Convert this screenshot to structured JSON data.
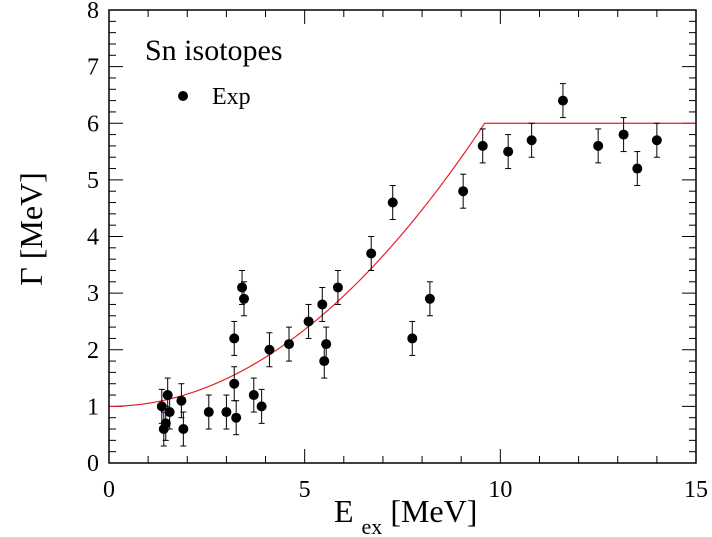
{
  "chart_data": {
    "type": "scatter",
    "title": "Sn isotopes",
    "xlabel_main": "E",
    "xlabel_sub": "ex",
    "xlabel_unit": " [MeV]",
    "ylabel": "Γ [MeV]",
    "xlim": [
      0,
      15
    ],
    "ylim": [
      0,
      8
    ],
    "x_ticks": [
      0,
      5,
      10,
      15
    ],
    "y_ticks": [
      0,
      1,
      2,
      3,
      4,
      5,
      6,
      7,
      8
    ],
    "grid": false,
    "legend_position": "top-left",
    "colors": {
      "points": "#000000",
      "fit_line": "#e8202a",
      "axes": "#000000"
    },
    "series": [
      {
        "name": "Exp",
        "marker": "filled-circle",
        "points": [
          {
            "x": 1.35,
            "y": 1.0,
            "err": 0.3
          },
          {
            "x": 1.4,
            "y": 0.6,
            "err": 0.3
          },
          {
            "x": 1.45,
            "y": 0.7,
            "err": 0.3
          },
          {
            "x": 1.5,
            "y": 1.2,
            "err": 0.3
          },
          {
            "x": 1.55,
            "y": 0.9,
            "err": 0.3
          },
          {
            "x": 1.85,
            "y": 1.1,
            "err": 0.3
          },
          {
            "x": 1.9,
            "y": 0.6,
            "err": 0.3
          },
          {
            "x": 2.55,
            "y": 0.9,
            "err": 0.3
          },
          {
            "x": 3.0,
            "y": 0.9,
            "err": 0.3
          },
          {
            "x": 3.2,
            "y": 1.4,
            "err": 0.3
          },
          {
            "x": 3.2,
            "y": 2.2,
            "err": 0.3
          },
          {
            "x": 3.25,
            "y": 0.8,
            "err": 0.3
          },
          {
            "x": 3.4,
            "y": 3.1,
            "err": 0.3
          },
          {
            "x": 3.45,
            "y": 2.9,
            "err": 0.3
          },
          {
            "x": 3.7,
            "y": 1.2,
            "err": 0.3
          },
          {
            "x": 3.9,
            "y": 1.0,
            "err": 0.3
          },
          {
            "x": 4.1,
            "y": 2.0,
            "err": 0.3
          },
          {
            "x": 4.6,
            "y": 2.1,
            "err": 0.3
          },
          {
            "x": 5.1,
            "y": 2.5,
            "err": 0.3
          },
          {
            "x": 5.45,
            "y": 2.8,
            "err": 0.3
          },
          {
            "x": 5.5,
            "y": 1.8,
            "err": 0.3
          },
          {
            "x": 5.55,
            "y": 2.1,
            "err": 0.3
          },
          {
            "x": 5.85,
            "y": 3.1,
            "err": 0.3
          },
          {
            "x": 6.7,
            "y": 3.7,
            "err": 0.3
          },
          {
            "x": 7.25,
            "y": 4.6,
            "err": 0.3
          },
          {
            "x": 7.75,
            "y": 2.2,
            "err": 0.3
          },
          {
            "x": 8.2,
            "y": 2.9,
            "err": 0.3
          },
          {
            "x": 9.05,
            "y": 4.8,
            "err": 0.3
          },
          {
            "x": 9.55,
            "y": 5.6,
            "err": 0.3
          },
          {
            "x": 10.2,
            "y": 5.5,
            "err": 0.3
          },
          {
            "x": 10.8,
            "y": 5.7,
            "err": 0.3
          },
          {
            "x": 11.6,
            "y": 6.4,
            "err": 0.3
          },
          {
            "x": 12.5,
            "y": 5.6,
            "err": 0.3
          },
          {
            "x": 13.15,
            "y": 5.8,
            "err": 0.3
          },
          {
            "x": 13.5,
            "y": 5.2,
            "err": 0.3
          },
          {
            "x": 14.0,
            "y": 5.7,
            "err": 0.3
          }
        ]
      }
    ],
    "fit_line": {
      "description": "parabolic rise to saturation",
      "y0": 1.0,
      "x_sat": 9.6,
      "y_sat": 6.0,
      "x_max": 15
    }
  }
}
